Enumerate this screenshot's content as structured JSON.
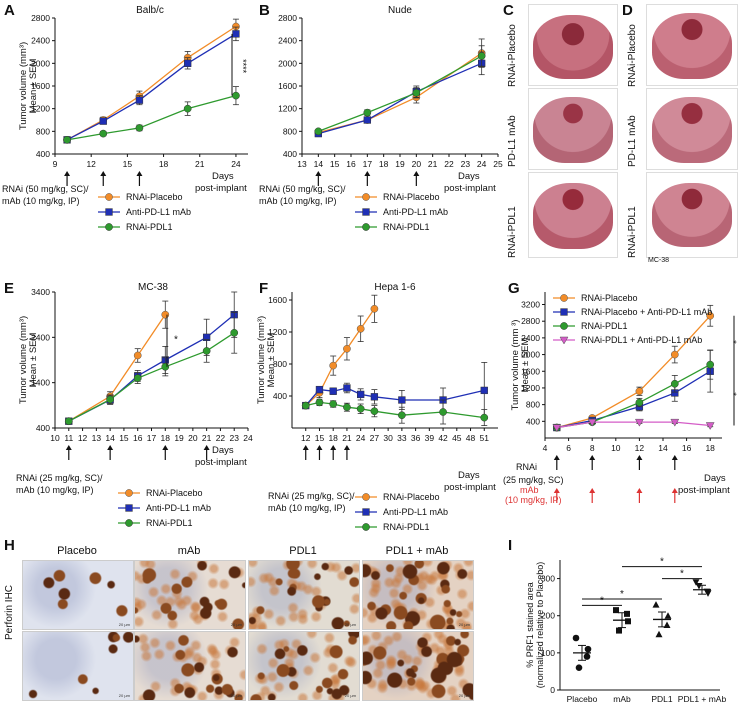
{
  "panels": {
    "A": {
      "letter": "A",
      "title": "Balb/c",
      "ylabel": "Tumor volume (mm³)",
      "ylabel2": "Mean ± SEM",
      "xaxis": "Days",
      "xaxis2": "post-implant",
      "sig": "****",
      "treat1": "RNAi (50 mg/kg, SC)/",
      "treat2": "mAb (10 mg/kg, IP)",
      "legend": [
        "RNAi-Placebo",
        "Anti-PD-L1 mAb",
        "RNAi-PDL1"
      ]
    },
    "B": {
      "letter": "B",
      "title": "Nude",
      "xaxis": "Days",
      "xaxis2": "post-implant",
      "treat1": "RNAi (50 mg/kg, SC)/",
      "treat2": "mAb (10 mg/kg, IP)",
      "legend": [
        "RNAi-Placebo",
        "Anti-PD-L1 mAb",
        "RNAi-PDL1"
      ]
    },
    "C": {
      "letter": "C",
      "rows": [
        "RNAi-Placebo",
        "PD-L1 mAb",
        "RNAi-PDL1"
      ]
    },
    "D": {
      "letter": "D",
      "rows": [
        "RNAi-Placebo",
        "PD-L1 mAb",
        "RNAi-PDL1"
      ],
      "caption": "MC-38"
    },
    "E": {
      "letter": "E",
      "title": "MC-38",
      "ylabel": "Tumor volume (mm³)",
      "ylabel2": "Mean ± SEM",
      "xaxis": "Days",
      "xaxis2": "post-implant",
      "sig": "*",
      "treat1": "RNAi (25 mg/kg, SC)/",
      "treat2": "mAb (10 mg/kg, IP)",
      "legend": [
        "RNAi-Placebo",
        "Anti-PD-L1 mAb",
        "RNAi-PDL1"
      ]
    },
    "F": {
      "letter": "F",
      "title": "Hepa 1-6",
      "ylabel": "Tumor volume (mm³)",
      "ylabel2": "Mean ± SEM",
      "xaxis": "Days",
      "xaxis2": "post-implant",
      "treat1": "RNAi (25 mg/kg, SC)/",
      "treat2": "mAb (10 mg/kg, IP)",
      "legend": [
        "RNAi-Placebo",
        "Anti-PD-L1 mAb",
        "RNAi-PDL1"
      ]
    },
    "G": {
      "letter": "G",
      "ylabel": "Tumor volume (mm ³)",
      "ylabel2": "Mean ± SEM",
      "xaxis": "Days",
      "xaxis2": "post-implant",
      "rnai": "RNAi",
      "rnai_dose": "(25 mg/kg, SC)",
      "mab": "mAb",
      "mab_dose": "(10 mg/kg, IP)",
      "sig": [
        "*",
        "*",
        "**"
      ],
      "legend": [
        "RNAi-Placebo",
        "RNAi-Placebo + Anti-PD-L1 mAb",
        "RNAi-PDL1",
        "RNAi-PDL1 + Anti-PD-L1 mAb"
      ]
    },
    "H": {
      "letter": "H",
      "cols": [
        "Placebo",
        "mAb",
        "PDL1",
        "PDL1 + mAb"
      ],
      "rowlabel": "Perforin IHC",
      "scalebar": "20 µm"
    },
    "I": {
      "letter": "I",
      "ylabel": "% PRF1 stained area",
      "ylabel2": "(normalized relative to Placebo)",
      "sig": [
        "*",
        "*",
        "*",
        "*"
      ]
    }
  },
  "colors": {
    "placebo": "#f28c28",
    "mab": "#1f2fb5",
    "pdl1": "#2e9a2e",
    "combo": "#d45cc7",
    "red": "#d33"
  },
  "chart_data": [
    {
      "panel": "A",
      "type": "line",
      "x": [
        10,
        13,
        16,
        20,
        24
      ],
      "xlim": [
        9,
        25
      ],
      "ylim": [
        400,
        2800
      ],
      "xticks": [
        9,
        12,
        15,
        18,
        21,
        24
      ],
      "yticks": [
        400,
        800,
        1200,
        1600,
        2000,
        2400,
        2800
      ],
      "dosing_days": [
        10,
        13,
        16
      ],
      "series": [
        {
          "name": "RNAi-Placebo",
          "values": [
            650,
            1000,
            1420,
            2100,
            2650
          ],
          "err": [
            20,
            50,
            90,
            110,
            130
          ]
        },
        {
          "name": "Anti-PD-L1 mAb",
          "values": [
            650,
            980,
            1350,
            2000,
            2520
          ],
          "err": [
            20,
            50,
            80,
            100,
            120
          ]
        },
        {
          "name": "RNAi-PDL1",
          "values": [
            650,
            760,
            860,
            1200,
            1430
          ],
          "err": [
            20,
            40,
            50,
            120,
            160
          ]
        }
      ]
    },
    {
      "panel": "B",
      "type": "line",
      "x": [
        14,
        17,
        20,
        24
      ],
      "xlim": [
        13,
        25
      ],
      "ylim": [
        400,
        2800
      ],
      "xticks": [
        13,
        14,
        15,
        16,
        17,
        18,
        19,
        20,
        21,
        22,
        23,
        24,
        25
      ],
      "yticks": [
        400,
        800,
        1200,
        1600,
        2000,
        2400,
        2800
      ],
      "dosing_days": [
        14,
        17,
        20
      ],
      "series": [
        {
          "name": "RNAi-Placebo",
          "values": [
            780,
            1000,
            1400,
            2180
          ],
          "err": [
            30,
            50,
            100,
            250
          ]
        },
        {
          "name": "Anti-PD-L1 mAb",
          "values": [
            760,
            1000,
            1500,
            2000
          ],
          "err": [
            30,
            50,
            100,
            200
          ]
        },
        {
          "name": "RNAi-PDL1",
          "values": [
            800,
            1130,
            1480,
            2130
          ],
          "err": [
            30,
            50,
            90,
            180
          ]
        }
      ]
    },
    {
      "panel": "E",
      "type": "line",
      "x": [
        11,
        14,
        16,
        18,
        21,
        23
      ],
      "xlim": [
        10,
        24
      ],
      "ylim": [
        400,
        3400
      ],
      "xticks": [
        10,
        11,
        12,
        13,
        14,
        15,
        16,
        17,
        18,
        19,
        20,
        21,
        22,
        23,
        24
      ],
      "yticks": [
        400,
        1400,
        2400,
        3400
      ],
      "dosing_days": [
        11,
        14,
        18,
        21
      ],
      "series": [
        {
          "name": "RNAi-Placebo",
          "values": [
            550,
            1100,
            2000,
            2900,
            null,
            null
          ],
          "err": [
            50,
            100,
            150,
            300,
            0,
            0
          ]
        },
        {
          "name": "Anti-PD-L1 mAb",
          "values": [
            550,
            1020,
            1550,
            1900,
            2400,
            2900
          ],
          "err": [
            50,
            100,
            120,
            300,
            400,
            500
          ]
        },
        {
          "name": "RNAi-PDL1",
          "values": [
            550,
            1030,
            1500,
            1750,
            2100,
            2500
          ],
          "err": [
            50,
            100,
            120,
            200,
            250,
            450
          ]
        }
      ]
    },
    {
      "panel": "F",
      "type": "line",
      "x": [
        12,
        15,
        18,
        21,
        24,
        27,
        33,
        42,
        51
      ],
      "xlim": [
        9,
        54
      ],
      "ylim": [
        0,
        1700
      ],
      "xticks": [
        12,
        15,
        18,
        21,
        24,
        27,
        30,
        33,
        36,
        39,
        42,
        45,
        48,
        51
      ],
      "yticks": [
        400,
        800,
        1200,
        1600
      ],
      "dosing_days": [
        12,
        15,
        18,
        21
      ],
      "series": [
        {
          "name": "RNAi-Placebo",
          "values": [
            280,
            440,
            780,
            990,
            1240,
            1490,
            null,
            null,
            null
          ],
          "err": [
            20,
            60,
            120,
            140,
            160,
            170,
            0,
            0,
            0
          ]
        },
        {
          "name": "Anti-PD-L1 mAb",
          "values": [
            280,
            480,
            460,
            500,
            420,
            390,
            350,
            350,
            470
          ],
          "err": [
            20,
            40,
            40,
            60,
            70,
            90,
            120,
            150,
            350
          ]
        },
        {
          "name": "RNAi-PDL1",
          "values": [
            280,
            320,
            300,
            260,
            240,
            210,
            160,
            200,
            130
          ],
          "err": [
            20,
            40,
            40,
            50,
            60,
            70,
            100,
            150,
            100
          ]
        }
      ]
    },
    {
      "panel": "G",
      "type": "line",
      "x": [
        5,
        8,
        12,
        15,
        18
      ],
      "xlim": [
        4,
        19
      ],
      "ylim": [
        0,
        3500
      ],
      "xticks": [
        4,
        6,
        8,
        10,
        12,
        14,
        16,
        18
      ],
      "yticks": [
        400,
        800,
        1200,
        1600,
        2000,
        2400,
        2800,
        3200
      ],
      "rnai_days": [
        5,
        8,
        12,
        15
      ],
      "mab_days": [
        5,
        8,
        12,
        15
      ],
      "series": [
        {
          "name": "RNAi-Placebo",
          "values": [
            250,
            480,
            1120,
            2000,
            2930
          ],
          "err": [
            20,
            50,
            100,
            200,
            250
          ]
        },
        {
          "name": "RNAi-Placebo + Anti-PD-L1 mAb",
          "values": [
            250,
            420,
            750,
            1080,
            1600
          ],
          "err": [
            20,
            40,
            100,
            200,
            500
          ]
        },
        {
          "name": "RNAi-PDL1",
          "values": [
            250,
            380,
            850,
            1300,
            1760
          ],
          "err": [
            20,
            40,
            100,
            200,
            350
          ]
        },
        {
          "name": "RNAi-PDL1 + Anti-PD-L1 mAb",
          "values": [
            250,
            380,
            380,
            380,
            300
          ],
          "err": [
            20,
            30,
            30,
            30,
            30
          ]
        }
      ]
    },
    {
      "panel": "I",
      "type": "scatter",
      "categories": [
        "Placebo",
        "mAb",
        "PDL1",
        "PDL1 + mAb"
      ],
      "ylim": [
        0,
        350
      ],
      "yticks": [
        0,
        100,
        200,
        300
      ],
      "means": [
        100,
        188,
        190,
        270
      ],
      "sem": [
        20,
        20,
        20,
        12
      ],
      "points": [
        [
          140,
          110,
          60,
          90
        ],
        [
          215,
          185,
          160,
          205
        ],
        [
          230,
          200,
          150,
          175
        ],
        [
          290,
          260,
          280,
          265
        ]
      ]
    }
  ]
}
